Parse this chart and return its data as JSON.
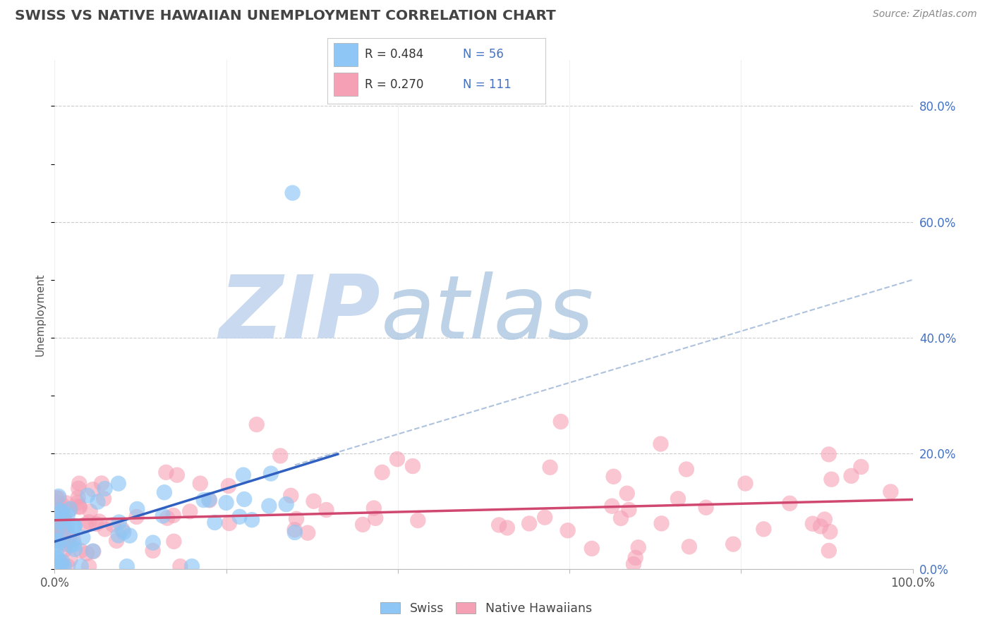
{
  "title": "SWISS VS NATIVE HAWAIIAN UNEMPLOYMENT CORRELATION CHART",
  "source": "Source: ZipAtlas.com",
  "ylabel": "Unemployment",
  "swiss_color": "#8ec6f5",
  "native_color": "#f5a0b5",
  "swiss_line_color": "#3060c0",
  "native_line_color": "#d04870",
  "swiss_R": 0.484,
  "swiss_N": 56,
  "native_R": 0.27,
  "native_N": 111,
  "legend_text_color": "#4472c4",
  "title_color": "#444444",
  "source_color": "#888888",
  "background_color": "#ffffff",
  "grid_color": "#cccccc",
  "diag_color": "#a0b8d8",
  "wm_zip_color": "#c0d4ee",
  "wm_atlas_color": "#a8c4e0"
}
